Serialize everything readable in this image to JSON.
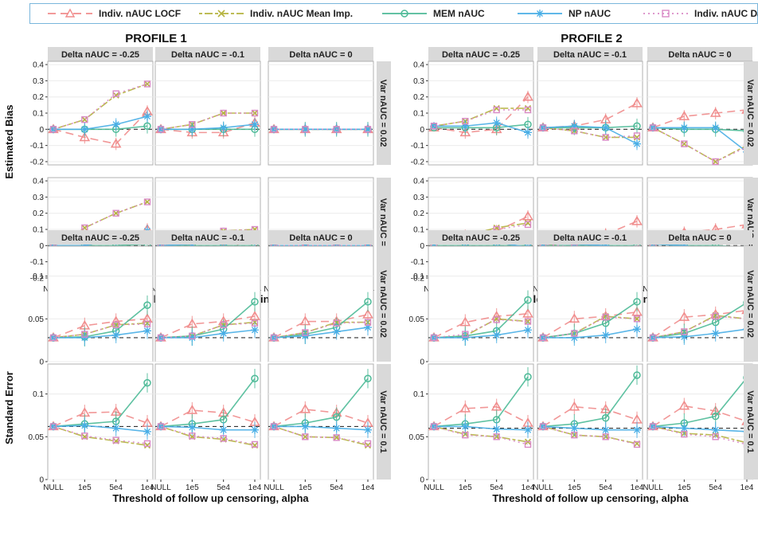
{
  "legend": {
    "items": [
      {
        "label": "Indiv. nAUC LOCF",
        "color": "#f08c8c",
        "marker": "triangle",
        "dash": "10,6"
      },
      {
        "label": "Indiv. nAUC Mean Imp.",
        "color": "#b5b33f",
        "marker": "cross",
        "dash": "4,3,10,3"
      },
      {
        "label": "MEM nAUC",
        "color": "#4dba97",
        "marker": "circle",
        "dash": ""
      },
      {
        "label": "NP nAUC",
        "color": "#48aee6",
        "marker": "asterisk",
        "dash": ""
      },
      {
        "label": "Indiv. nAUC Data",
        "color": "#d98ac6",
        "marker": "square",
        "dash": "2,4"
      }
    ]
  },
  "profile_titles": [
    "PROFILE 1",
    "PROFILE 2"
  ],
  "facet_cols": [
    "Delta nAUC = -0.25",
    "Delta nAUC = -0.1",
    "Delta nAUC = 0"
  ],
  "facet_rows": [
    "Var nAUC = 0.02",
    "Var nAUC = 0.1"
  ],
  "xlabel": "Threshold of follow up censoring, alpha",
  "ylabel_bias": "Estimated Bias",
  "ylabel_se": "Standard Error",
  "chart_data": {
    "type": "line",
    "x": [
      "NULL",
      "1e5",
      "5e4",
      "1e4"
    ],
    "series_names": [
      "Indiv. nAUC LOCF",
      "Indiv. nAUC Mean Imp.",
      "MEM nAUC",
      "NP nAUC",
      "Indiv. nAUC Data"
    ],
    "bias": {
      "ylim": [
        -0.22,
        0.42
      ],
      "yticks": [
        -0.2,
        -0.1,
        0,
        0.1,
        0.2,
        0.3,
        0.4
      ],
      "reference_line": 0,
      "panels": [
        {
          "profile": "PROFILE 1",
          "delta": "Delta nAUC = -0.25",
          "var": "Var nAUC = 0.02",
          "series": [
            [
              0,
              -0.05,
              -0.09,
              0.11
            ],
            [
              0,
              0.06,
              0.21,
              0.28
            ],
            [
              0,
              0,
              0,
              0.02
            ],
            [
              0,
              0,
              0.03,
              0.08
            ],
            [
              0,
              0.06,
              0.22,
              0.28
            ]
          ]
        },
        {
          "profile": "PROFILE 1",
          "delta": "Delta nAUC = -0.1",
          "var": "Var nAUC = 0.02",
          "series": [
            [
              0,
              -0.02,
              -0.02,
              0.04
            ],
            [
              0,
              0.03,
              0.1,
              0.1
            ],
            [
              0,
              0,
              0,
              0
            ],
            [
              0,
              0,
              0.01,
              0.03
            ],
            [
              0,
              0.03,
              0.1,
              0.1
            ]
          ]
        },
        {
          "profile": "PROFILE 1",
          "delta": "Delta nAUC = 0",
          "var": "Var nAUC = 0.02",
          "series": [
            [
              0,
              0,
              0,
              0
            ],
            [
              0,
              0,
              0,
              0
            ],
            [
              0,
              0,
              0,
              0
            ],
            [
              0,
              0,
              0,
              0
            ],
            [
              0,
              0,
              0,
              0
            ]
          ]
        },
        {
          "profile": "PROFILE 1",
          "delta": "Delta nAUC = -0.25",
          "var": "Var nAUC = 0.1",
          "series": [
            [
              0,
              -0.05,
              -0.04,
              0.1
            ],
            [
              0,
              0.11,
              0.2,
              0.27
            ],
            [
              0,
              0,
              0,
              0.01
            ],
            [
              0,
              0,
              0.04,
              0.09
            ],
            [
              0,
              0.11,
              0.2,
              0.27
            ]
          ]
        },
        {
          "profile": "PROFILE 1",
          "delta": "Delta nAUC = -0.1",
          "var": "Var nAUC = 0.1",
          "series": [
            [
              0,
              -0.01,
              -0.01,
              0.03
            ],
            [
              0,
              0.05,
              0.09,
              0.1
            ],
            [
              0,
              0,
              0,
              0
            ],
            [
              0,
              0.01,
              0.02,
              0.03
            ],
            [
              0,
              0.05,
              0.09,
              0.1
            ]
          ]
        },
        {
          "profile": "PROFILE 1",
          "delta": "Delta nAUC = 0",
          "var": "Var nAUC = 0.1",
          "series": [
            [
              0,
              0,
              0,
              0
            ],
            [
              0,
              0,
              0,
              0
            ],
            [
              0,
              0,
              0,
              0
            ],
            [
              0,
              0,
              0,
              0
            ],
            [
              0,
              0,
              0,
              0
            ]
          ]
        },
        {
          "profile": "PROFILE 2",
          "delta": "Delta nAUC = -0.25",
          "var": "Var nAUC = 0.02",
          "series": [
            [
              0.01,
              -0.02,
              0,
              0.2
            ],
            [
              0.02,
              0.05,
              0.13,
              0.13
            ],
            [
              0.01,
              0.01,
              0.01,
              0.03
            ],
            [
              0.02,
              0.02,
              0.04,
              -0.02
            ],
            [
              0.02,
              0.05,
              0.12,
              0.12
            ]
          ]
        },
        {
          "profile": "PROFILE 2",
          "delta": "Delta nAUC = -0.1",
          "var": "Var nAUC = 0.02",
          "series": [
            [
              0.01,
              0.02,
              0.06,
              0.16
            ],
            [
              0.01,
              -0.01,
              -0.05,
              -0.05
            ],
            [
              0.01,
              0.01,
              0.01,
              0.02
            ],
            [
              0.01,
              0.02,
              0.01,
              -0.09
            ],
            [
              0.01,
              -0.01,
              -0.05,
              -0.04
            ]
          ]
        },
        {
          "profile": "PROFILE 2",
          "delta": "Delta nAUC = 0",
          "var": "Var nAUC = 0.02",
          "series": [
            [
              0.01,
              0.08,
              0.1,
              0.12
            ],
            [
              0.01,
              -0.09,
              -0.2,
              -0.1
            ],
            [
              0.01,
              0,
              0,
              -0.01
            ],
            [
              0.01,
              0.01,
              0.01,
              -0.14
            ],
            [
              0.01,
              -0.09,
              -0.2,
              -0.11
            ]
          ]
        },
        {
          "profile": "PROFILE 2",
          "delta": "Delta nAUC = -0.25",
          "var": "Var nAUC = 0.1",
          "series": [
            [
              0.01,
              0.06,
              0.09,
              0.18
            ],
            [
              0.01,
              0.06,
              0.11,
              0.14
            ],
            [
              0,
              0,
              0,
              0
            ],
            [
              0.01,
              0.02,
              0.02,
              -0.01
            ],
            [
              0.01,
              0.06,
              0.1,
              0.13
            ]
          ]
        },
        {
          "profile": "PROFILE 2",
          "delta": "Delta nAUC = -0.1",
          "var": "Var nAUC = 0.1",
          "series": [
            [
              0.01,
              0.04,
              0.07,
              0.15
            ],
            [
              0.01,
              -0.01,
              -0.04,
              -0.02
            ],
            [
              0,
              0,
              0,
              0
            ],
            [
              0.01,
              0.01,
              0,
              -0.1
            ],
            [
              0.01,
              -0.01,
              -0.04,
              -0.02
            ]
          ]
        },
        {
          "profile": "PROFILE 2",
          "delta": "Delta nAUC = 0",
          "var": "Var nAUC = 0.1",
          "series": [
            [
              0.01,
              0.08,
              0.1,
              0.13
            ],
            [
              0.01,
              -0.1,
              -0.16,
              -0.1
            ],
            [
              0.01,
              0,
              0,
              -0.01
            ],
            [
              0.01,
              0,
              -0.04,
              -0.13
            ],
            [
              0.01,
              -0.11,
              -0.16,
              -0.15
            ]
          ]
        }
      ]
    },
    "standard_error": {
      "ylim": [
        0,
        0.135
      ],
      "yticks": [
        0,
        0.05,
        0.1
      ],
      "panels": [
        {
          "profile": "PROFILE 1",
          "delta": "Delta nAUC = -0.25",
          "var": "Var nAUC = 0.02",
          "ref": 0.028,
          "series": [
            [
              0.028,
              0.042,
              0.047,
              0.05
            ],
            [
              0.028,
              0.032,
              0.043,
              0.045
            ],
            [
              0.028,
              0.029,
              0.036,
              0.066
            ],
            [
              0.028,
              0.028,
              0.031,
              0.036
            ],
            [
              0.028,
              0.032,
              0.043,
              0.044
            ]
          ]
        },
        {
          "profile": "PROFILE 1",
          "delta": "Delta nAUC = -0.1",
          "var": "Var nAUC = 0.02",
          "ref": 0.028,
          "series": [
            [
              0.028,
              0.044,
              0.047,
              0.053
            ],
            [
              0.028,
              0.03,
              0.043,
              0.046
            ],
            [
              0.028,
              0.03,
              0.038,
              0.07
            ],
            [
              0.028,
              0.028,
              0.033,
              0.037
            ],
            [
              0.028,
              0.03,
              0.043,
              0.045
            ]
          ]
        },
        {
          "profile": "PROFILE 1",
          "delta": "Delta nAUC = 0",
          "var": "Var nAUC = 0.02",
          "ref": 0.028,
          "series": [
            [
              0.028,
              0.047,
              0.047,
              0.055
            ],
            [
              0.028,
              0.034,
              0.046,
              0.046
            ],
            [
              0.028,
              0.032,
              0.04,
              0.07
            ],
            [
              0.028,
              0.03,
              0.035,
              0.04
            ],
            [
              0.028,
              0.034,
              0.045,
              0.046
            ]
          ]
        },
        {
          "profile": "PROFILE 1",
          "delta": "Delta nAUC = -0.25",
          "var": "Var nAUC = 0.1",
          "ref": 0.062,
          "series": [
            [
              0.062,
              0.078,
              0.079,
              0.066
            ],
            [
              0.062,
              0.05,
              0.045,
              0.04
            ],
            [
              0.062,
              0.065,
              0.068,
              0.113
            ],
            [
              0.062,
              0.063,
              0.06,
              0.056
            ],
            [
              0.062,
              0.051,
              0.046,
              0.042
            ]
          ]
        },
        {
          "profile": "PROFILE 1",
          "delta": "Delta nAUC = -0.1",
          "var": "Var nAUC = 0.1",
          "ref": 0.062,
          "series": [
            [
              0.062,
              0.081,
              0.078,
              0.067
            ],
            [
              0.062,
              0.05,
              0.047,
              0.04
            ],
            [
              0.062,
              0.065,
              0.07,
              0.118
            ],
            [
              0.062,
              0.061,
              0.058,
              0.058
            ],
            [
              0.062,
              0.051,
              0.048,
              0.041
            ]
          ]
        },
        {
          "profile": "PROFILE 1",
          "delta": "Delta nAUC = 0",
          "var": "Var nAUC = 0.1",
          "ref": 0.062,
          "series": [
            [
              0.062,
              0.082,
              0.078,
              0.066
            ],
            [
              0.062,
              0.05,
              0.049,
              0.04
            ],
            [
              0.062,
              0.066,
              0.073,
              0.118
            ],
            [
              0.062,
              0.062,
              0.06,
              0.058
            ],
            [
              0.062,
              0.05,
              0.049,
              0.042
            ]
          ]
        },
        {
          "profile": "PROFILE 2",
          "delta": "Delta nAUC = -0.25",
          "var": "Var nAUC = 0.02",
          "ref": 0.028,
          "series": [
            [
              0.028,
              0.046,
              0.053,
              0.056
            ],
            [
              0.028,
              0.03,
              0.05,
              0.047
            ],
            [
              0.028,
              0.03,
              0.036,
              0.072
            ],
            [
              0.028,
              0.028,
              0.031,
              0.037
            ],
            [
              0.028,
              0.032,
              0.049,
              0.047
            ]
          ]
        },
        {
          "profile": "PROFILE 2",
          "delta": "Delta nAUC = -0.1",
          "var": "Var nAUC = 0.02",
          "ref": 0.028,
          "series": [
            [
              0.028,
              0.05,
              0.053,
              0.058
            ],
            [
              0.028,
              0.033,
              0.053,
              0.05
            ],
            [
              0.028,
              0.033,
              0.045,
              0.07
            ],
            [
              0.028,
              0.028,
              0.031,
              0.038
            ],
            [
              0.028,
              0.033,
              0.052,
              0.05
            ]
          ]
        },
        {
          "profile": "PROFILE 2",
          "delta": "Delta nAUC = 0",
          "var": "Var nAUC = 0.02",
          "ref": 0.028,
          "series": [
            [
              0.028,
              0.052,
              0.055,
              0.06
            ],
            [
              0.028,
              0.035,
              0.054,
              0.05
            ],
            [
              0.028,
              0.033,
              0.046,
              0.069
            ],
            [
              0.028,
              0.029,
              0.033,
              0.038
            ],
            [
              0.028,
              0.035,
              0.053,
              0.05
            ]
          ]
        },
        {
          "profile": "PROFILE 2",
          "delta": "Delta nAUC = -0.25",
          "var": "Var nAUC = 0.1",
          "ref": 0.06,
          "series": [
            [
              0.062,
              0.083,
              0.085,
              0.066
            ],
            [
              0.062,
              0.053,
              0.05,
              0.044
            ],
            [
              0.062,
              0.065,
              0.07,
              0.12
            ],
            [
              0.062,
              0.062,
              0.059,
              0.058
            ],
            [
              0.062,
              0.052,
              0.05,
              0.041
            ]
          ]
        },
        {
          "profile": "PROFILE 2",
          "delta": "Delta nAUC = -0.1",
          "var": "Var nAUC = 0.1",
          "ref": 0.06,
          "series": [
            [
              0.062,
              0.085,
              0.082,
              0.07
            ],
            [
              0.062,
              0.052,
              0.05,
              0.042
            ],
            [
              0.062,
              0.065,
              0.072,
              0.122
            ],
            [
              0.062,
              0.06,
              0.058,
              0.058
            ],
            [
              0.062,
              0.052,
              0.05,
              0.041
            ]
          ]
        },
        {
          "profile": "PROFILE 2",
          "delta": "Delta nAUC = 0",
          "var": "Var nAUC = 0.1",
          "ref": 0.06,
          "series": [
            [
              0.062,
              0.086,
              0.08,
              0.068
            ],
            [
              0.062,
              0.054,
              0.052,
              0.043
            ],
            [
              0.062,
              0.066,
              0.074,
              0.119
            ],
            [
              0.062,
              0.06,
              0.058,
              0.056
            ],
            [
              0.062,
              0.053,
              0.05,
              0.041
            ]
          ]
        }
      ]
    }
  }
}
